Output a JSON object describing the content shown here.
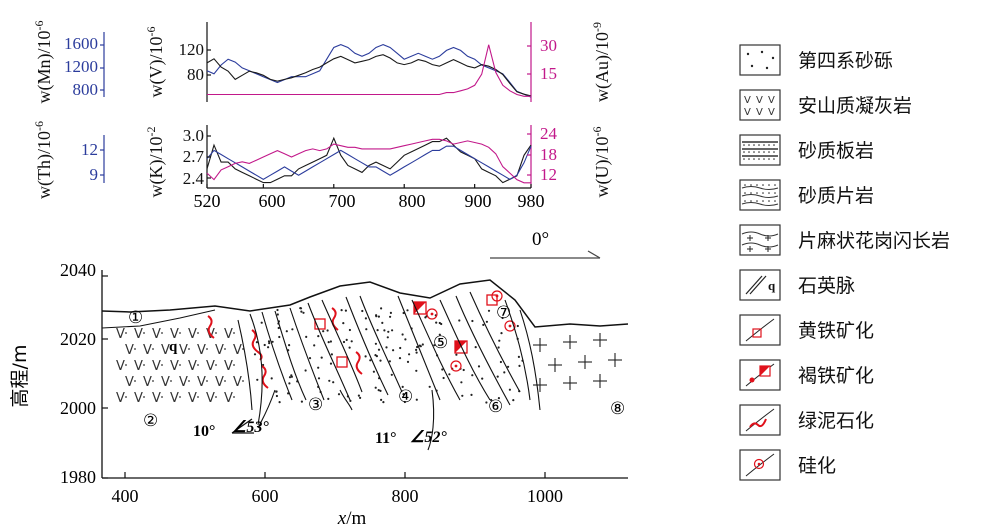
{
  "geochem_chart": {
    "type": "line",
    "x": [
      520,
      530,
      540,
      550,
      560,
      570,
      580,
      590,
      600,
      610,
      620,
      630,
      640,
      650,
      660,
      670,
      680,
      690,
      700,
      710,
      720,
      730,
      740,
      750,
      760,
      770,
      780,
      790,
      800,
      810,
      820,
      830,
      840,
      850,
      860,
      870,
      880,
      890,
      900,
      910,
      920,
      930,
      940,
      950,
      960,
      970,
      980
    ],
    "x_ticks": [
      520,
      600,
      700,
      800,
      900,
      980
    ],
    "upper_panel": {
      "ylabel_left_mn": "w(Mn)/10",
      "ylabel_left_mn_exp": "-6",
      "ylabel_left_v": "w(V)/10",
      "ylabel_left_v_exp": "-6",
      "ylabel_right_au": "w(Au)/10",
      "ylabel_right_au_exp": "-9",
      "ticks_mn": [
        "1600",
        "1200",
        "800"
      ],
      "ticks_v": [
        "120",
        "80"
      ],
      "ticks_au": [
        "30",
        "15"
      ],
      "mn_range": [
        600,
        1800
      ],
      "v_range": [
        55,
        140
      ],
      "au_range": [
        0,
        38
      ],
      "series": [
        {
          "values": [
            1100,
            1050,
            1200,
            1300,
            1250,
            1150,
            1100,
            1050,
            1000,
            950,
            900,
            950,
            1000,
            1000,
            1000,
            1050,
            1100,
            1300,
            1500,
            1550,
            1500,
            1400,
            1350,
            1400,
            1500,
            1550,
            1500,
            1400,
            1300,
            1350,
            1400,
            1350,
            1300,
            1350,
            1450,
            1500,
            1450,
            1350,
            1300,
            1200,
            1150,
            1100,
            1050,
            900,
            750,
            700,
            650
          ]
        },
        {
          "values": [
            100,
            105,
            95,
            90,
            80,
            85,
            90,
            88,
            85,
            80,
            78,
            80,
            82,
            85,
            88,
            92,
            95,
            100,
            105,
            108,
            104,
            100,
            102,
            104,
            108,
            110,
            106,
            100,
            98,
            100,
            104,
            102,
            98,
            96,
            100,
            104,
            100,
            96,
            94,
            98,
            96,
            92,
            86,
            75,
            65,
            62,
            60
          ]
        },
        {
          "values": [
            3,
            3,
            3,
            3,
            3,
            3,
            3,
            3,
            3,
            3,
            3,
            3,
            3,
            3,
            3,
            3,
            3,
            3,
            3,
            3,
            3,
            3,
            3,
            3,
            3,
            3,
            3,
            3,
            3,
            3,
            3,
            3,
            3,
            3,
            4,
            4,
            5,
            6,
            8,
            14,
            30,
            15,
            8,
            5,
            3,
            2,
            2
          ]
        }
      ]
    },
    "lower_panel": {
      "ylabel_left_th": "w(Th)/10",
      "ylabel_left_th_exp": "-6",
      "ylabel_left_k": "w(K)/10",
      "ylabel_left_k_exp": "-2",
      "ylabel_right_u": "w(U)/10",
      "ylabel_right_u_exp": "-6",
      "ticks_th": [
        "12",
        "9"
      ],
      "ticks_k": [
        "3.0",
        "2.7",
        "2.4"
      ],
      "ticks_u": [
        "24",
        "18",
        "12"
      ],
      "k_range": [
        2.25,
        3.1
      ],
      "th_range": [
        7.2,
        14.2
      ],
      "u_range": [
        8,
        26
      ],
      "series": [
        {
          "values": [
            2.5,
            2.85,
            2.6,
            2.6,
            2.5,
            2.45,
            2.4,
            2.35,
            2.3,
            2.3,
            2.35,
            2.4,
            2.4,
            2.5,
            2.55,
            2.6,
            2.65,
            2.7,
            2.95,
            2.7,
            2.55,
            2.5,
            2.45,
            2.55,
            2.6,
            2.55,
            2.5,
            2.6,
            2.7,
            2.75,
            2.8,
            2.85,
            2.9,
            2.9,
            2.95,
            2.85,
            2.75,
            2.7,
            2.65,
            2.5,
            2.45,
            2.4,
            2.3,
            2.35,
            2.4,
            2.7,
            2.85
          ]
        },
        {
          "values": [
            10.5,
            11.5,
            11,
            10.5,
            10,
            9.5,
            9,
            8.5,
            8,
            8.5,
            9,
            9.5,
            9,
            8.5,
            9,
            9.5,
            10,
            10.5,
            11,
            11.5,
            11,
            10.5,
            10,
            9.5,
            9.5,
            9,
            8.5,
            9,
            9.5,
            10,
            10.5,
            11,
            11.5,
            11.5,
            12,
            12,
            11.5,
            11,
            10.5,
            10,
            9.5,
            9,
            8.5,
            8,
            8.5,
            10,
            12
          ]
        },
        {
          "values": [
            12,
            10,
            13,
            14,
            15,
            15.5,
            15,
            16,
            17,
            18,
            19,
            18,
            17,
            18,
            19,
            19.5,
            19,
            19.5,
            21,
            20.5,
            20,
            20,
            19.5,
            19.5,
            19.5,
            19.5,
            19.5,
            20,
            20.5,
            21,
            21.5,
            22,
            22.5,
            22.5,
            22,
            21,
            21.5,
            22,
            21.5,
            21,
            20,
            18,
            14,
            12,
            10,
            9,
            9
          ]
        }
      ]
    }
  },
  "compass": {
    "label": "0°"
  },
  "section": {
    "ylabel": "高程/m",
    "xlabel_var": "x",
    "xlabel_unit": "/m",
    "y_ticks": [
      "2040",
      "2020",
      "2000",
      "1980"
    ],
    "x_ticks": [
      "400",
      "600",
      "800",
      "1000"
    ],
    "x_range": [
      365,
      1130
    ],
    "y_range": [
      1980,
      2040
    ],
    "unit_markers": [
      "①",
      "②",
      "③",
      "④",
      "⑤",
      "⑦",
      "⑥",
      "⑧"
    ],
    "quartz_vein_letter": "q",
    "orientation_1_strike": "10°",
    "orientation_1_dip": "∠53°",
    "orientation_2_strike": "11°",
    "orientation_2_dip": "∠52°"
  },
  "legend": {
    "items": [
      {
        "label": "第四系砂砾",
        "pattern": "sparse-dots"
      },
      {
        "label": "安山质凝灰岩",
        "pattern": "v-dots"
      },
      {
        "label": "砂质板岩",
        "pattern": "dotted-bands"
      },
      {
        "label": "砂质片岩",
        "pattern": "dashed-dots"
      },
      {
        "label": "片麻状花岗闪长岩",
        "pattern": "plus-wavy"
      },
      {
        "label": "石英脉",
        "pattern": "vein-q",
        "glyph": "q"
      },
      {
        "label": "黄铁矿化",
        "pattern": "pyrite"
      },
      {
        "label": "褐铁矿化",
        "pattern": "limonite"
      },
      {
        "label": "绿泥石化",
        "pattern": "chlorite"
      },
      {
        "label": "硅化",
        "pattern": "silicification"
      }
    ]
  },
  "colors": {
    "mn_th_series": "#2b3c9c",
    "v_k_series": "#1a1a1a",
    "au_u_series": "#c2188a",
    "mineral_red": "#e0111b",
    "axis": "#111111"
  }
}
